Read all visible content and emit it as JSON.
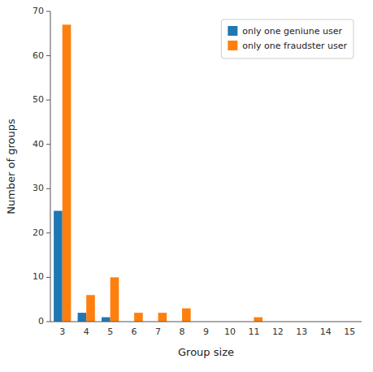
{
  "chart_data": {
    "type": "bar",
    "categories": [
      "3",
      "4",
      "5",
      "6",
      "7",
      "8",
      "9",
      "10",
      "11",
      "12",
      "13",
      "14",
      "15"
    ],
    "series": [
      {
        "name": "only one geniune user",
        "color": "#1f77b4",
        "values": [
          25,
          2,
          1,
          0,
          0,
          0,
          0,
          0,
          0,
          0,
          0,
          0,
          0
        ]
      },
      {
        "name": "only one fraudster user",
        "color": "#ff7f0e",
        "values": [
          67,
          6,
          10,
          2,
          2,
          3,
          0,
          0,
          1,
          0,
          0,
          0,
          0
        ]
      }
    ],
    "x_label": "Group size",
    "y_label": "Number of groups",
    "ylim": [
      0,
      70
    ],
    "yticks": [
      0,
      10,
      20,
      30,
      40,
      50,
      60,
      70
    ],
    "legend": "upper right",
    "grid": false
  }
}
